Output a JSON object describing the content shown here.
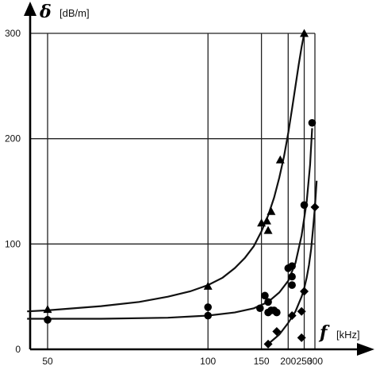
{
  "chart_data": {
    "type": "scatter",
    "title": "",
    "y_symbol": "δ",
    "y_unit": "[dB/m]",
    "x_symbol": "f",
    "x_unit": "[kHz]",
    "x_scale": "reciprocal",
    "x_ticks": [
      50,
      100,
      150,
      200,
      250,
      300
    ],
    "y_ticks": [
      0,
      100,
      200,
      300
    ],
    "ylim": [
      0,
      300
    ],
    "xlim": [
      47,
      330
    ],
    "grid": true,
    "series": [
      {
        "marker": "triangle",
        "points": [
          [
            50,
            38
          ],
          [
            100,
            60
          ],
          [
            150,
            120
          ],
          [
            158,
            122
          ],
          [
            160,
            113
          ],
          [
            165,
            131
          ],
          [
            182,
            180
          ],
          [
            250,
            300
          ]
        ],
        "curve": [
          [
            47,
            36
          ],
          [
            50,
            37
          ],
          [
            60,
            41
          ],
          [
            70,
            45
          ],
          [
            80,
            50
          ],
          [
            90,
            55
          ],
          [
            100,
            61
          ],
          [
            110,
            68
          ],
          [
            120,
            77
          ],
          [
            130,
            87
          ],
          [
            140,
            98
          ],
          [
            150,
            112
          ],
          [
            160,
            127
          ],
          [
            170,
            144
          ],
          [
            180,
            163
          ],
          [
            190,
            183
          ],
          [
            200,
            205
          ],
          [
            210,
            228
          ],
          [
            220,
            250
          ],
          [
            230,
            270
          ],
          [
            240,
            287
          ],
          [
            250,
            300
          ]
        ]
      },
      {
        "marker": "circle",
        "points": [
          [
            50,
            28
          ],
          [
            100,
            32
          ],
          [
            100,
            40
          ],
          [
            148,
            39
          ],
          [
            155,
            51
          ],
          [
            160,
            35
          ],
          [
            160,
            45
          ],
          [
            165,
            37
          ],
          [
            170,
            37
          ],
          [
            175,
            35
          ],
          [
            200,
            77
          ],
          [
            210,
            79
          ],
          [
            210,
            61
          ],
          [
            210,
            69
          ],
          [
            250,
            137
          ],
          [
            285,
            215
          ]
        ],
        "curve": [
          [
            47,
            29
          ],
          [
            60,
            29
          ],
          [
            80,
            30
          ],
          [
            100,
            32
          ],
          [
            120,
            35
          ],
          [
            140,
            39
          ],
          [
            160,
            45
          ],
          [
            180,
            54
          ],
          [
            200,
            65
          ],
          [
            220,
            82
          ],
          [
            240,
            108
          ],
          [
            260,
            140
          ],
          [
            275,
            175
          ],
          [
            285,
            210
          ]
        ]
      },
      {
        "marker": "diamond",
        "points": [
          [
            160,
            5
          ],
          [
            175,
            17
          ],
          [
            210,
            32
          ],
          [
            240,
            36
          ],
          [
            240,
            11
          ],
          [
            250,
            55
          ],
          [
            300,
            135
          ]
        ],
        "curve": [
          [
            160,
            5
          ],
          [
            180,
            14
          ],
          [
            200,
            25
          ],
          [
            220,
            36
          ],
          [
            240,
            50
          ],
          [
            250,
            58
          ],
          [
            260,
            68
          ],
          [
            270,
            80
          ],
          [
            280,
            95
          ],
          [
            290,
            115
          ],
          [
            300,
            135
          ],
          [
            310,
            160
          ]
        ]
      }
    ]
  }
}
